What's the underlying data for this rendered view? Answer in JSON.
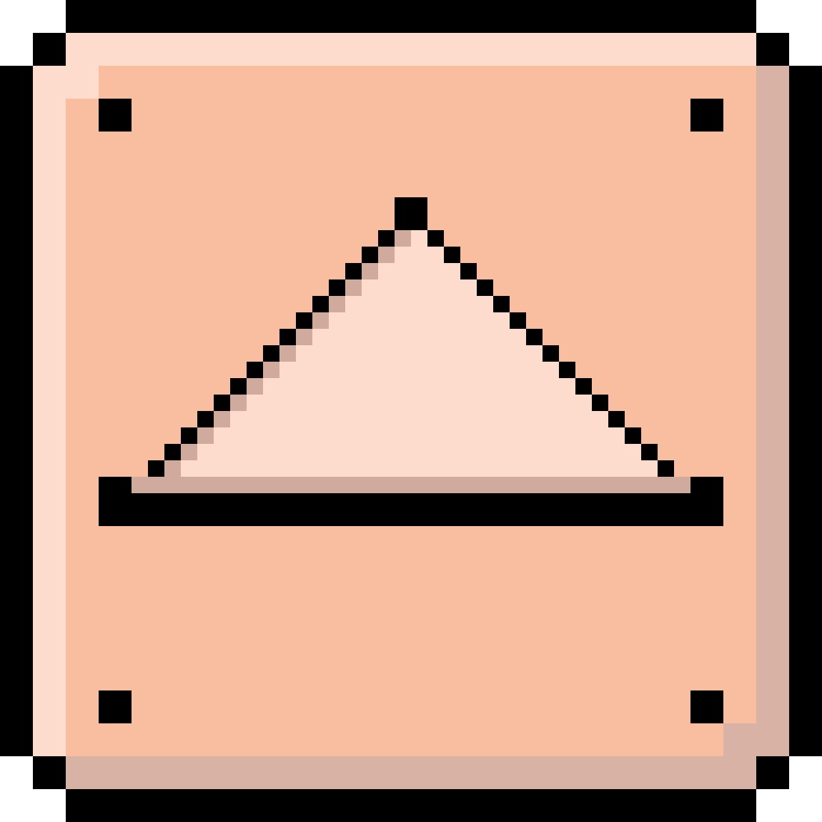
{
  "button": {
    "icon": "eject-up-arrow-icon",
    "style": "pixel-art",
    "colors": {
      "outline": "#000000",
      "face": "#f9bea0",
      "highlight": "#fddcce",
      "shadow": "#d8b3a3",
      "arrow_fill": "#fddcce",
      "arrow_shadow": "#d0aa9b",
      "background": "#ffffff"
    }
  }
}
